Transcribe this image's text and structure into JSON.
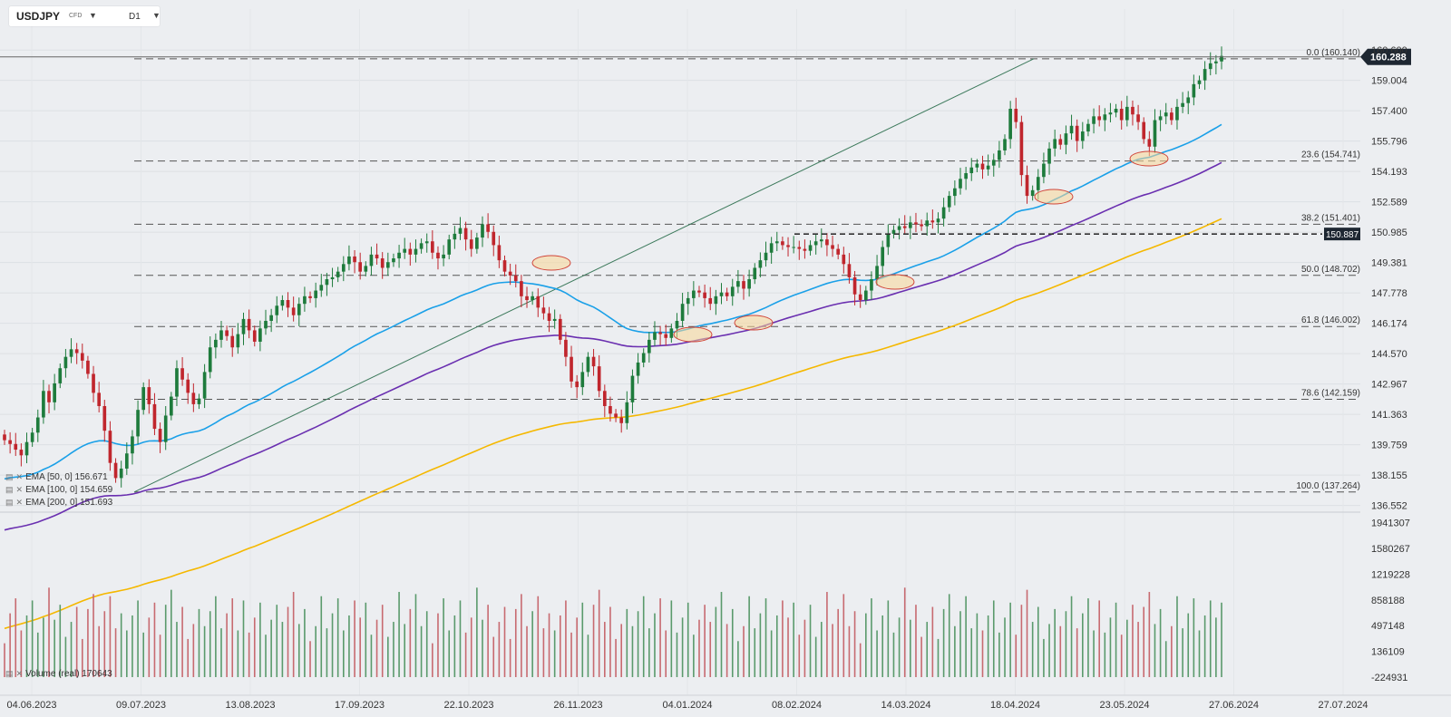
{
  "header": {
    "symbol": "USDJPY",
    "instrument_type": "CFD",
    "timeframe": "D1"
  },
  "price_badges": {
    "current": "160.288",
    "level": "150.887"
  },
  "indicators": [
    {
      "label": "EMA  [50,  0]  156.671",
      "color": "#1aa0e8"
    },
    {
      "label": "EMA  [100,  0]  154.659",
      "color": "#6a2fb0"
    },
    {
      "label": "EMA  [200,  0]  151.693",
      "color": "#f5b800"
    }
  ],
  "volume_label": "Volume  (real)  170643",
  "colors": {
    "bull": "#1e7b3c",
    "bear": "#c0262d",
    "background": "#eceef1",
    "fib_line": "#666666"
  },
  "chart_data": [
    {
      "type": "candlestick",
      "title": "USDJPY CFD D1",
      "x_tick_labels": [
        "04.06.2023",
        "09.07.2023",
        "13.08.2023",
        "17.09.2023",
        "22.10.2023",
        "26.11.2023",
        "04.01.2024",
        "08.02.2024",
        "14.03.2024",
        "18.04.2024",
        "23.05.2024",
        "27.06.2024",
        "27.07.2024"
      ],
      "y_tick_labels": [
        "160.600",
        "159.004",
        "157.400",
        "155.796",
        "154.193",
        "152.589",
        "150.985",
        "149.381",
        "147.778",
        "146.174",
        "144.570",
        "142.967",
        "141.363",
        "139.759",
        "138.155",
        "136.552"
      ],
      "ylim": [
        136.2,
        160.85
      ],
      "grid": true,
      "current_price": 160.288,
      "horizontal_level": 150.887,
      "fibonacci_retracement": {
        "low": 137.264,
        "high": 160.14,
        "levels": [
          {
            "pct": "0.0",
            "value": 160.14,
            "label": "0.0 (160.140)"
          },
          {
            "pct": "23.6",
            "value": 154.741,
            "label": "23.6 (154.741)"
          },
          {
            "pct": "38.2",
            "value": 151.401,
            "label": "38.2 (151.401)"
          },
          {
            "pct": "50.0",
            "value": 148.702,
            "label": "50.0 (148.702)"
          },
          {
            "pct": "61.8",
            "value": 146.002,
            "label": "61.8 (146.002)"
          },
          {
            "pct": "78.6",
            "value": 142.159,
            "label": "78.6 (142.159)"
          },
          {
            "pct": "100.0",
            "value": 137.264,
            "label": "100.0 (137.264)"
          }
        ]
      },
      "candle_closes": [
        140.0,
        139.8,
        139.5,
        139.2,
        139.9,
        140.4,
        141.2,
        142.6,
        142.0,
        143.0,
        143.8,
        144.4,
        144.8,
        144.6,
        144.2,
        143.5,
        142.5,
        141.8,
        140.5,
        138.8,
        138.0,
        138.5,
        139.3,
        140.2,
        141.6,
        142.8,
        141.9,
        140.6,
        139.9,
        141.3,
        142.3,
        143.8,
        143.2,
        142.5,
        141.9,
        142.2,
        143.6,
        144.9,
        145.3,
        145.8,
        145.5,
        144.9,
        145.6,
        146.4,
        145.8,
        145.2,
        145.9,
        146.3,
        146.6,
        147.1,
        147.4,
        147.0,
        146.6,
        147.2,
        147.6,
        147.5,
        147.9,
        148.2,
        148.5,
        148.6,
        148.9,
        149.3,
        149.7,
        149.4,
        148.9,
        149.2,
        149.8,
        149.6,
        149.1,
        149.4,
        149.6,
        149.9,
        150.1,
        149.8,
        150.1,
        150.4,
        150.5,
        149.9,
        149.6,
        149.8,
        150.6,
        150.9,
        151.2,
        150.6,
        150.1,
        150.7,
        151.4,
        151.0,
        150.3,
        149.5,
        148.9,
        148.7,
        148.4,
        147.6,
        147.4,
        147.6,
        147.0,
        146.7,
        146.3,
        146.4,
        145.3,
        144.4,
        143.1,
        142.8,
        143.6,
        144.4,
        143.9,
        142.6,
        141.8,
        141.4,
        141.2,
        140.9,
        142.0,
        143.4,
        144.1,
        144.6,
        145.3,
        145.7,
        145.6,
        145.4,
        145.9,
        146.3,
        147.2,
        147.5,
        147.9,
        147.8,
        147.5,
        147.2,
        147.6,
        147.8,
        147.6,
        148.1,
        148.4,
        148.0,
        148.5,
        149.1,
        149.5,
        149.9,
        150.4,
        150.5,
        150.3,
        150.2,
        150.2,
        150.1,
        150.0,
        150.3,
        150.5,
        150.6,
        150.3,
        150.1,
        149.8,
        149.3,
        148.6,
        147.7,
        147.4,
        147.9,
        148.5,
        149.2,
        150.2,
        150.9,
        151.1,
        151.3,
        151.2,
        151.5,
        151.4,
        151.3,
        151.6,
        151.5,
        151.7,
        152.3,
        152.9,
        153.3,
        153.8,
        154.1,
        154.4,
        154.6,
        154.3,
        154.5,
        154.8,
        155.3,
        155.9,
        157.5,
        156.8,
        154.0,
        152.9,
        153.2,
        153.9,
        154.6,
        155.4,
        155.9,
        155.6,
        156.2,
        156.6,
        155.8,
        156.3,
        156.7,
        157.1,
        156.9,
        157.2,
        157.3,
        157.5,
        156.9,
        157.6,
        157.2,
        156.8,
        155.9,
        155.5,
        156.9,
        157.1,
        157.3,
        156.9,
        157.6,
        157.8,
        158.1,
        158.8,
        159.0,
        159.6,
        159.9,
        160.0,
        160.29
      ],
      "ema_series": [
        {
          "name": "EMA [50, 0]",
          "last": 156.671
        },
        {
          "name": "EMA [100, 0]",
          "last": 154.659
        },
        {
          "name": "EMA [200, 0]",
          "last": 151.693
        }
      ]
    },
    {
      "type": "bar",
      "title": "Volume (real)",
      "last_value": 170643,
      "y_tick_labels": [
        "1941307",
        "1580267",
        "1219228",
        "858188",
        "497148",
        "136109",
        "-224931"
      ],
      "ylim": [
        -224931,
        2000000
      ]
    }
  ]
}
